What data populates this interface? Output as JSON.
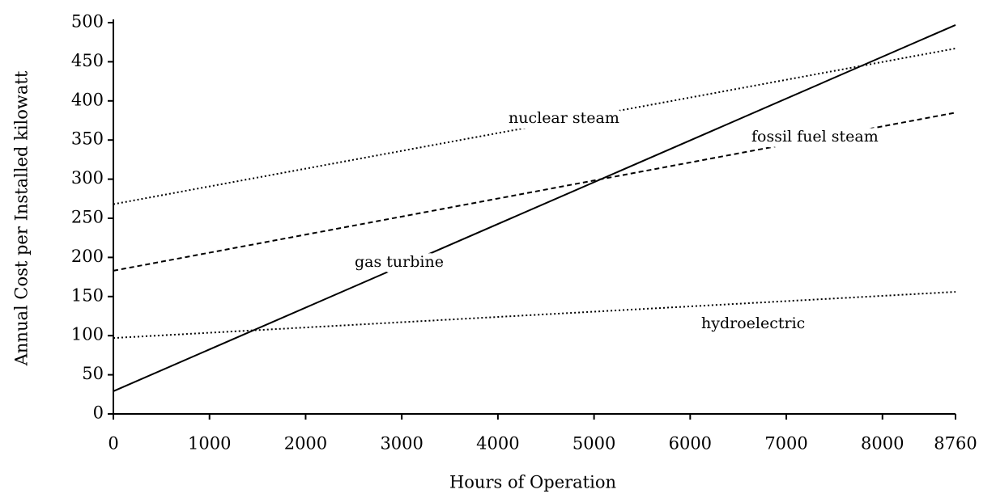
{
  "chart_data": {
    "type": "line",
    "xlabel": "Hours of Operation",
    "ylabel": "Annual Cost per Installed kilowatt",
    "x": [
      0,
      8760
    ],
    "series": [
      {
        "name": "gas turbine",
        "color": "#000000",
        "style": "solid",
        "values": [
          29,
          497
        ]
      },
      {
        "name": "nuclear steam",
        "color": "#000000",
        "style": "dotted",
        "values": [
          268,
          467
        ]
      },
      {
        "name": "fossil fuel steam",
        "color": "#000000",
        "style": "dashed",
        "values": [
          183,
          385
        ]
      },
      {
        "name": "hydroelectric",
        "color": "#000000",
        "style": "dotted",
        "values": [
          97,
          156
        ]
      }
    ],
    "xlim": [
      0,
      8760
    ],
    "xticks": [
      0,
      1000,
      2000,
      3000,
      4000,
      5000,
      6000,
      7000,
      8000,
      8760
    ],
    "ylim": [
      0,
      500
    ],
    "yticks": [
      0,
      50,
      100,
      150,
      200,
      250,
      300,
      350,
      400,
      450,
      500
    ],
    "grid": false
  }
}
